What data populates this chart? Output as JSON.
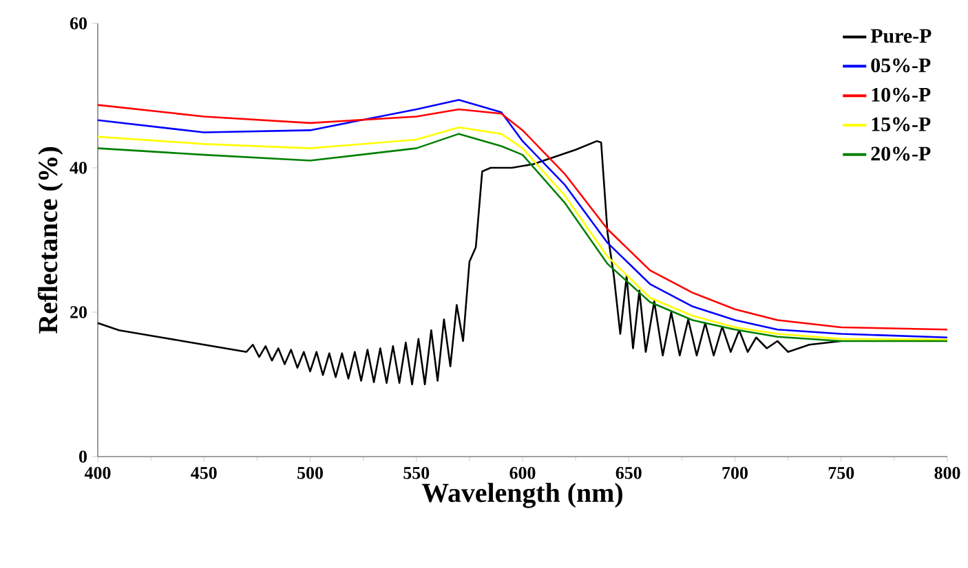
{
  "chart_data": {
    "type": "line",
    "xlabel": "Wavelength (nm)",
    "ylabel": "Reflectance (%)",
    "xlim": [
      400,
      800
    ],
    "ylim": [
      0,
      60
    ],
    "xticks": [
      400,
      450,
      500,
      550,
      600,
      650,
      700,
      750,
      800
    ],
    "yticks": [
      0,
      20,
      40,
      60
    ],
    "legend": "top right",
    "grid": false,
    "series": [
      {
        "name": "Pure-P",
        "color": "#000000",
        "x": [
          400,
          405,
          410,
          420,
          430,
          440,
          450,
          460,
          470,
          473,
          476,
          479,
          482,
          485,
          488,
          491,
          494,
          497,
          500,
          503,
          506,
          509,
          512,
          515,
          518,
          521,
          524,
          527,
          530,
          533,
          536,
          539,
          542,
          545,
          548,
          551,
          554,
          557,
          560,
          563,
          566,
          569,
          572,
          575,
          578,
          581,
          585,
          595,
          605,
          615,
          625,
          635,
          637,
          640,
          643,
          646,
          649,
          652,
          655,
          658,
          662,
          666,
          670,
          674,
          678,
          682,
          686,
          690,
          694,
          698,
          702,
          706,
          710,
          715,
          720,
          725,
          735,
          750
        ],
        "values": [
          18.5,
          18.0,
          17.5,
          17.0,
          16.5,
          16.0,
          15.5,
          15.0,
          14.5,
          15.5,
          13.8,
          15.3,
          13.3,
          15.0,
          12.8,
          14.8,
          12.3,
          14.5,
          11.8,
          14.5,
          11.3,
          14.3,
          11.0,
          14.3,
          10.8,
          14.5,
          10.5,
          14.8,
          10.3,
          15.0,
          10.2,
          15.3,
          10.2,
          15.8,
          10.0,
          16.3,
          10.0,
          17.5,
          10.5,
          19.0,
          12.5,
          21.0,
          16.0,
          27.0,
          29.0,
          39.5,
          40.0,
          40.0,
          40.5,
          41.5,
          42.5,
          43.7,
          43.5,
          31.0,
          25.0,
          17.0,
          25.0,
          15.0,
          23.0,
          14.5,
          21.5,
          14.0,
          20.0,
          14.0,
          19.0,
          14.0,
          18.5,
          14.0,
          18.0,
          14.5,
          17.5,
          14.5,
          16.5,
          15.0,
          16.0,
          14.5,
          15.5,
          16.0
        ]
      },
      {
        "name": "05%-P",
        "color": "#0000ff",
        "x": [
          400,
          450,
          500,
          550,
          570,
          590,
          600,
          620,
          640,
          660,
          680,
          700,
          720,
          750,
          800
        ],
        "values": [
          46.6,
          44.9,
          45.2,
          48.1,
          49.4,
          47.7,
          43.7,
          37.6,
          29.6,
          23.9,
          20.8,
          18.9,
          17.6,
          17.0,
          16.5
        ]
      },
      {
        "name": "10%-P",
        "color": "#ff0000",
        "x": [
          400,
          450,
          500,
          550,
          570,
          590,
          600,
          620,
          640,
          660,
          680,
          700,
          720,
          750,
          800
        ],
        "values": [
          48.7,
          47.1,
          46.2,
          47.1,
          48.1,
          47.5,
          45.2,
          39.1,
          31.5,
          25.8,
          22.7,
          20.4,
          18.9,
          17.9,
          17.6
        ]
      },
      {
        "name": "15%-P",
        "color": "#ffff00",
        "x": [
          400,
          450,
          500,
          550,
          570,
          590,
          600,
          620,
          640,
          660,
          680,
          700,
          720,
          750,
          800
        ],
        "values": [
          44.3,
          43.3,
          42.7,
          43.9,
          45.6,
          44.7,
          42.7,
          36.1,
          27.7,
          22.0,
          19.5,
          17.9,
          17.0,
          16.3,
          16.2
        ]
      },
      {
        "name": "20%-P",
        "color": "#008000",
        "x": [
          400,
          450,
          500,
          550,
          570,
          590,
          600,
          620,
          640,
          660,
          680,
          700,
          720,
          750,
          800
        ],
        "values": [
          42.7,
          41.8,
          41.0,
          42.7,
          44.7,
          43.0,
          41.8,
          35.1,
          26.7,
          21.4,
          18.9,
          17.6,
          16.6,
          16.0,
          16.0
        ]
      }
    ]
  }
}
